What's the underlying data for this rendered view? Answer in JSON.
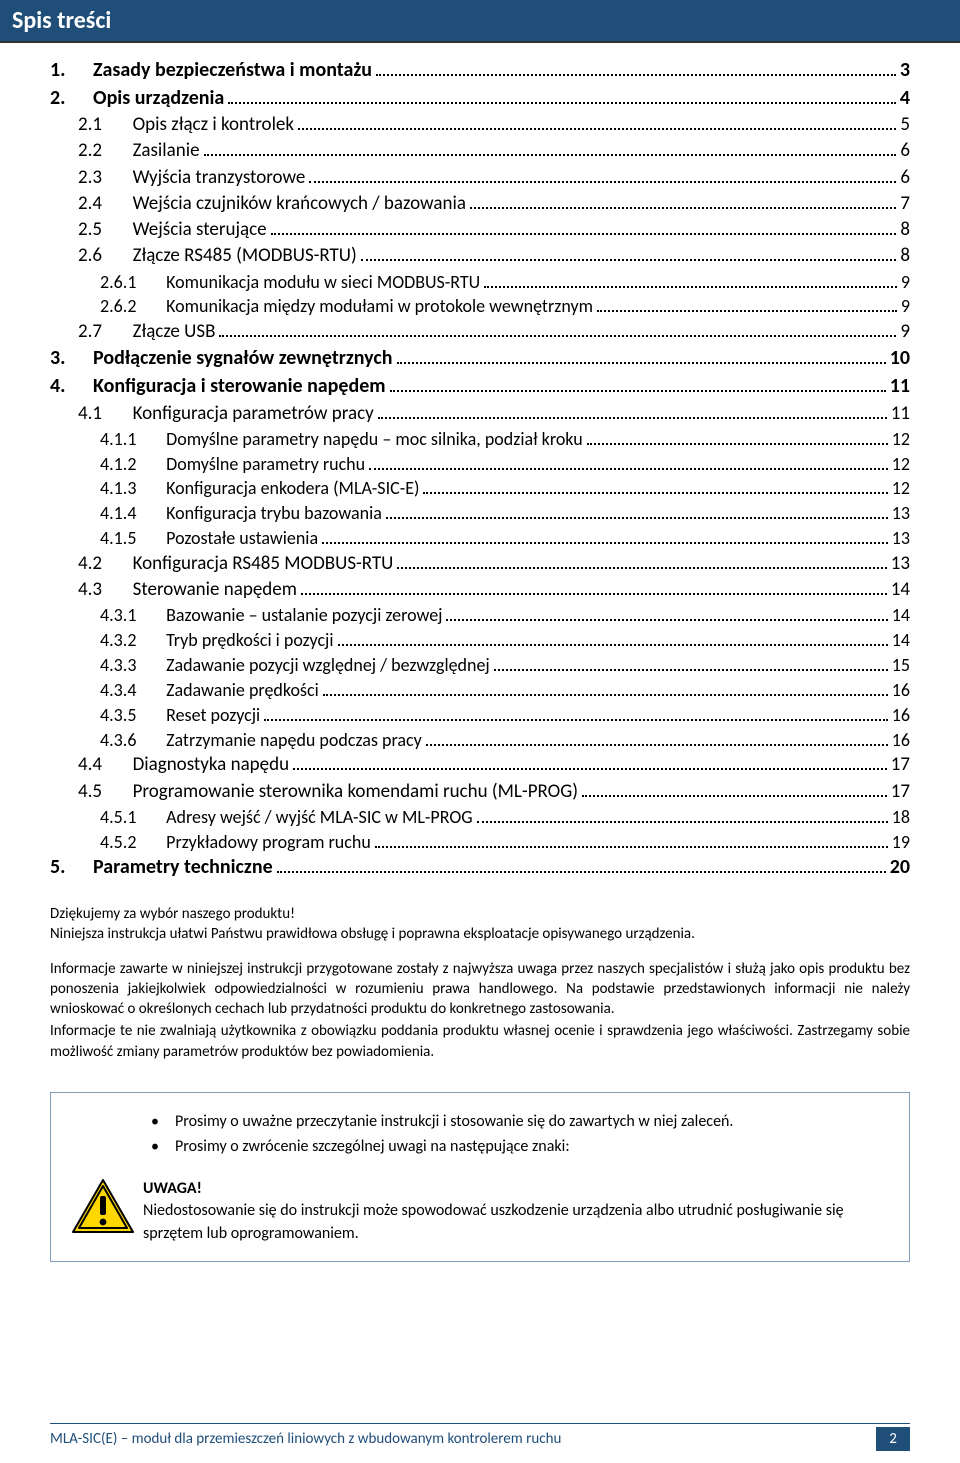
{
  "title": "Spis treści",
  "toc": [
    {
      "level": 0,
      "num": "1.",
      "title": "Zasady bezpieczeństwa i montażu",
      "page": "3"
    },
    {
      "level": 0,
      "num": "2.",
      "title": "Opis urządzenia",
      "page": "4"
    },
    {
      "level": 1,
      "num": "2.1",
      "title": "Opis złącz i kontrolek",
      "page": "5"
    },
    {
      "level": 1,
      "num": "2.2",
      "title": "Zasilanie",
      "page": "6"
    },
    {
      "level": 1,
      "num": "2.3",
      "title": "Wyjścia tranzystorowe",
      "page": "6"
    },
    {
      "level": 1,
      "num": "2.4",
      "title": "Wejścia czujników krańcowych / bazowania",
      "page": "7"
    },
    {
      "level": 1,
      "num": "2.5",
      "title": "Wejścia sterujące",
      "page": "8"
    },
    {
      "level": 1,
      "num": "2.6",
      "title": "Złącze RS485 (MODBUS-RTU)",
      "page": "8"
    },
    {
      "level": 2,
      "num": "2.6.1",
      "title": "Komunikacja modułu w sieci MODBUS-RTU",
      "page": "9"
    },
    {
      "level": 2,
      "num": "2.6.2",
      "title": "Komunikacja między modułami w protokole wewnętrznym",
      "page": "9"
    },
    {
      "level": 1,
      "num": "2.7",
      "title": "Złącze USB",
      "page": "9"
    },
    {
      "level": 0,
      "num": "3.",
      "title": "Podłączenie sygnałów zewnętrznych",
      "page": "10"
    },
    {
      "level": 0,
      "num": "4.",
      "title": "Konfiguracja i sterowanie napędem",
      "page": "11"
    },
    {
      "level": 1,
      "num": "4.1",
      "title": "Konfiguracja parametrów pracy",
      "page": "11"
    },
    {
      "level": 2,
      "num": "4.1.1",
      "title": "Domyślne parametry napędu – moc silnika, podział kroku",
      "page": "12"
    },
    {
      "level": 2,
      "num": "4.1.2",
      "title": "Domyślne parametry ruchu",
      "page": "12"
    },
    {
      "level": 2,
      "num": "4.1.3",
      "title": "Konfiguracja enkodera (MLA-SIC-E)",
      "page": "12"
    },
    {
      "level": 2,
      "num": "4.1.4",
      "title": "Konfiguracja trybu bazowania",
      "page": "13"
    },
    {
      "level": 2,
      "num": "4.1.5",
      "title": "Pozostałe ustawienia",
      "page": "13"
    },
    {
      "level": 1,
      "num": "4.2",
      "title": "Konfiguracja RS485 MODBUS-RTU",
      "page": "13"
    },
    {
      "level": 1,
      "num": "4.3",
      "title": "Sterowanie napędem",
      "page": "14"
    },
    {
      "level": 2,
      "num": "4.3.1",
      "title": "Bazowanie – ustalanie pozycji zerowej",
      "page": "14"
    },
    {
      "level": 2,
      "num": "4.3.2",
      "title": "Tryb prędkości i pozycji",
      "page": "14"
    },
    {
      "level": 2,
      "num": "4.3.3",
      "title": "Zadawanie pozycji względnej / bezwzględnej",
      "page": "15"
    },
    {
      "level": 2,
      "num": "4.3.4",
      "title": "Zadawanie prędkości",
      "page": "16"
    },
    {
      "level": 2,
      "num": "4.3.5",
      "title": "Reset pozycji",
      "page": "16"
    },
    {
      "level": 2,
      "num": "4.3.6",
      "title": "Zatrzymanie napędu podczas pracy",
      "page": "16"
    },
    {
      "level": 1,
      "num": "4.4",
      "title": "Diagnostyka napędu",
      "page": "17"
    },
    {
      "level": 1,
      "num": "4.5",
      "title": "Programowanie sterownika komendami ruchu (ML-PROG)",
      "page": "17"
    },
    {
      "level": 2,
      "num": "4.5.1",
      "title": "Adresy wejść / wyjść MLA-SIC  w ML-PROG",
      "page": "18"
    },
    {
      "level": 2,
      "num": "4.5.2",
      "title": "Przykładowy program ruchu",
      "page": "19"
    },
    {
      "level": 0,
      "num": "5.",
      "title": "Parametry techniczne",
      "page": "20"
    }
  ],
  "thanks_line1": "Dziękujemy za wybór naszego produktu!",
  "thanks_line2": "Niniejsza instrukcja ułatwi Państwu prawidłowa obsługę i poprawna eksploatacje opisywanego urządzenia.",
  "para1": "Informacje zawarte w niniejszej instrukcji przygotowane zostały z najwyższa uwaga przez naszych specjalistów i służą jako opis produktu bez ponoszenia jakiejkolwiek odpowiedzialności w rozumieniu prawa handlowego. Na podstawie przedstawionych informacji nie należy wnioskować o określonych cechach lub przydatności produktu do konkretnego zastosowania.",
  "para2": "Informacje te nie zwalniają użytkownika z obowiązku poddania produktu własnej ocenie i sprawdzenia jego właściwości. Zastrzegamy sobie możliwość zmiany parametrów produktów bez powiadomienia.",
  "bullet1": "Prosimy o uważne przeczytanie instrukcji i stosowanie się do zawartych w niej zaleceń.",
  "bullet2": "Prosimy o zwrócenie szczególnej uwagi na następujące znaki:",
  "warning_header": "UWAGA!",
  "warning_body": "Niedostosowanie się do instrukcji może spowodować uszkodzenie urządzenia albo utrudnić posługiwanie się sprzętem lub oprogramowaniem.",
  "footer_text": "MLA-SIC(E) – moduł dla przemieszczeń liniowych z wbudowanym kontrolerem ruchu",
  "page_number": "2",
  "colors": {
    "title_bg": "#1f4e79",
    "title_fg": "#ffffff",
    "box_border": "#7f9db9",
    "warn_yellow": "#ffd700",
    "warn_stroke": "#000000"
  }
}
